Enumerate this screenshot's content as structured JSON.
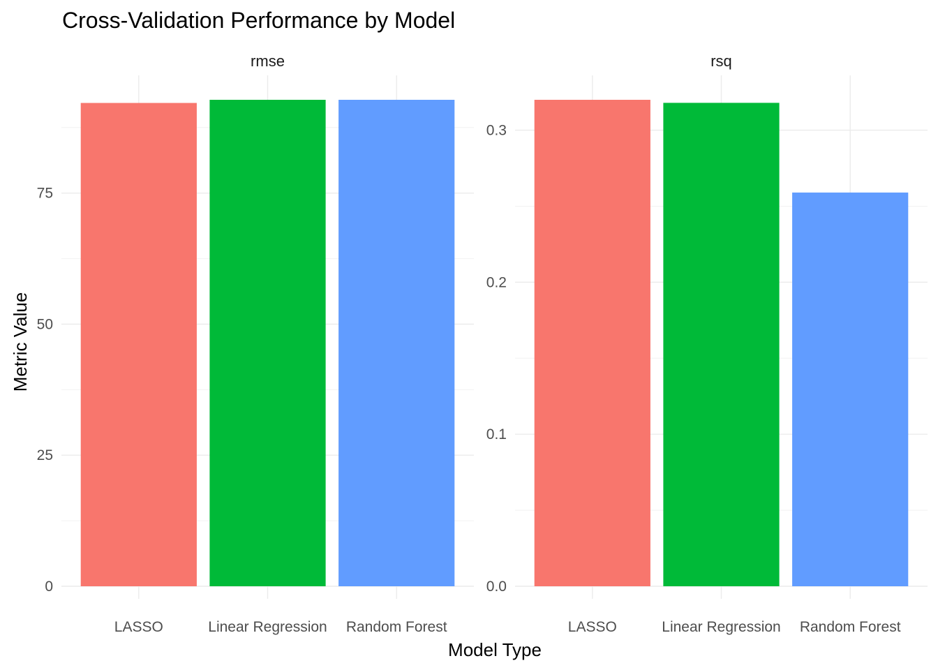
{
  "chart_data": {
    "type": "bar",
    "title": "Cross-Validation Performance by Model",
    "xlabel": "Model Type",
    "ylabel": "Metric Value",
    "categories": [
      "LASSO",
      "Linear Regression",
      "Random Forest"
    ],
    "colors": [
      "#F8766D",
      "#00BA38",
      "#619CFF"
    ],
    "grid": true,
    "legend": "none",
    "facets": [
      {
        "name": "rmse",
        "values": [
          92.2,
          92.8,
          92.8
        ],
        "ylim": [
          0,
          92.8
        ],
        "ticks": [
          0,
          25,
          50,
          75
        ],
        "tick_labels": [
          "0",
          "25",
          "50",
          "75"
        ]
      },
      {
        "name": "rsq",
        "values": [
          0.32,
          0.318,
          0.259
        ],
        "ylim": [
          0,
          0.32
        ],
        "ticks": [
          0,
          0.1,
          0.2,
          0.3
        ],
        "tick_labels": [
          "0.0",
          "0.1",
          "0.2",
          "0.3"
        ]
      }
    ]
  }
}
